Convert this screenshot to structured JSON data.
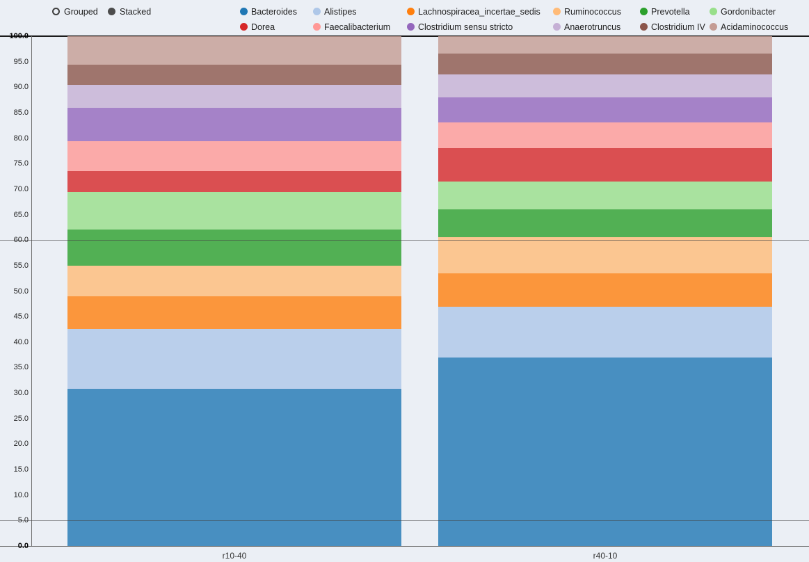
{
  "controls": {
    "grouped_label": "Grouped",
    "stacked_label": "Stacked",
    "selected": "Stacked"
  },
  "chart_data": {
    "type": "bar",
    "stacked": true,
    "categories": [
      "r10-40",
      "r40-10"
    ],
    "series": [
      {
        "name": "Bacteroides",
        "color": "#1f77b4",
        "values": [
          30.8,
          37.0
        ]
      },
      {
        "name": "Alistipes",
        "color": "#aec7e8",
        "values": [
          11.8,
          9.9
        ]
      },
      {
        "name": "Lachnospiracea_incertae_sedis",
        "color": "#ff7f0e",
        "values": [
          6.4,
          6.6
        ]
      },
      {
        "name": "Ruminococcus",
        "color": "#ffbb78",
        "values": [
          6.0,
          7.1
        ]
      },
      {
        "name": "Prevotella",
        "color": "#2ca02c",
        "values": [
          7.1,
          5.4
        ]
      },
      {
        "name": "Gordonibacter",
        "color": "#98df8a",
        "values": [
          7.3,
          5.5
        ]
      },
      {
        "name": "Dorea",
        "color": "#d62728",
        "values": [
          4.1,
          6.5
        ]
      },
      {
        "name": "Faecalibacterium",
        "color": "#ff9896",
        "values": [
          5.9,
          5.1
        ]
      },
      {
        "name": "Clostridium sensu stricto",
        "color": "#9467bd",
        "values": [
          6.6,
          4.9
        ]
      },
      {
        "name": "Anaerotruncus",
        "color": "#c5b0d5",
        "values": [
          4.5,
          4.5
        ]
      },
      {
        "name": "Clostridium IV",
        "color": "#8c564b",
        "values": [
          3.9,
          4.1
        ]
      },
      {
        "name": "Acidaminococcus",
        "color": "#c49c94",
        "values": [
          5.6,
          3.4
        ]
      }
    ],
    "title": "",
    "xlabel": "",
    "ylabel": "",
    "ylim": [
      0,
      100
    ],
    "ytick_step": 5,
    "ytick_decimals": 1,
    "grid": "highlight-lines-only",
    "highlight_gridlines": [
      60,
      5
    ],
    "legend_position": "top"
  }
}
